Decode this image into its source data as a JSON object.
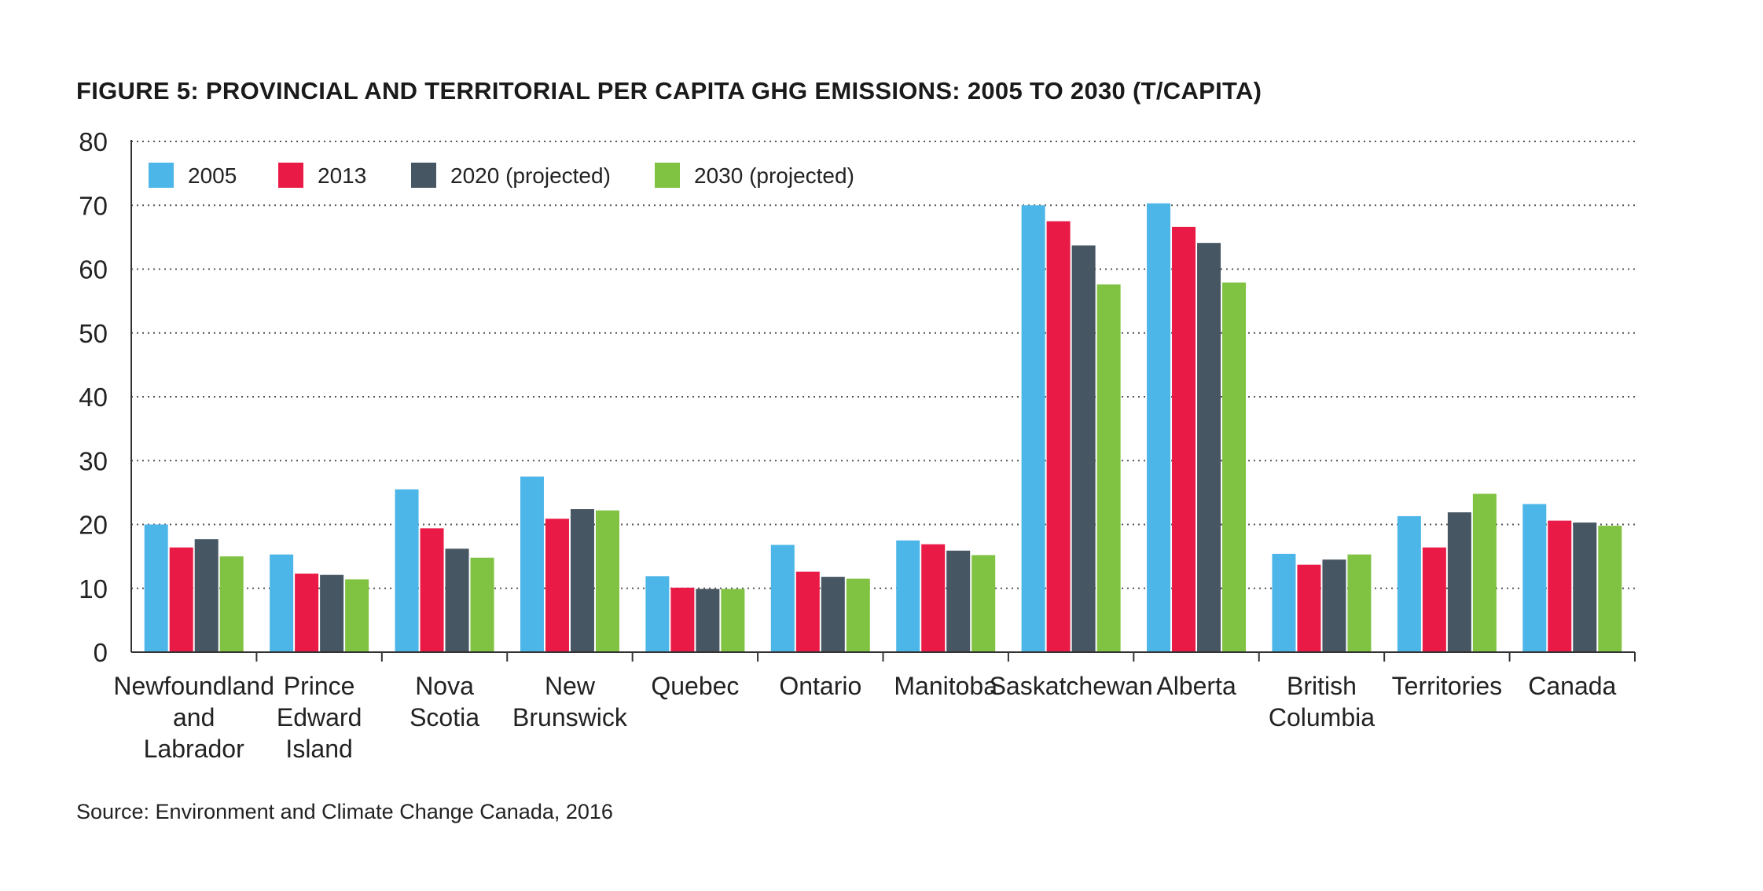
{
  "title": "FIGURE 5: PROVINCIAL AND TERRITORIAL PER CAPITA GHG EMISSIONS: 2005 TO 2030 (T/CAPITA)",
  "source": "Source: Environment and Climate Change Canada, 2016",
  "chart_data": {
    "type": "bar",
    "title": "FIGURE 5: PROVINCIAL AND TERRITORIAL PER CAPITA GHG EMISSIONS: 2005 TO 2030 (T/CAPITA)",
    "xlabel": "",
    "ylabel": "",
    "ylim": [
      0,
      80
    ],
    "yticks": [
      0,
      10,
      20,
      30,
      40,
      50,
      60,
      70,
      80
    ],
    "grid": "horizontal dotted",
    "legend_position": "top-left",
    "categories": [
      [
        "Newfoundland",
        "and",
        "Labrador"
      ],
      [
        "Prince",
        "Edward",
        "Island"
      ],
      [
        "Nova",
        "Scotia"
      ],
      [
        "New",
        "Brunswick"
      ],
      [
        "Quebec"
      ],
      [
        "Ontario"
      ],
      [
        "Manitoba"
      ],
      [
        "Saskatchewan"
      ],
      [
        "Alberta"
      ],
      [
        "British",
        "Columbia"
      ],
      [
        "Territories"
      ],
      [
        "Canada"
      ]
    ],
    "series": [
      {
        "name": "2005",
        "color": "#4db6e8",
        "values": [
          20,
          15.3,
          25.5,
          27.5,
          11.9,
          16.8,
          17.5,
          70,
          70.3,
          15.4,
          21.3,
          23.2
        ]
      },
      {
        "name": "2013",
        "color": "#ea1a47",
        "values": [
          16.4,
          12.3,
          19.4,
          20.9,
          10.1,
          12.6,
          16.9,
          67.5,
          66.6,
          13.7,
          16.4,
          20.6
        ]
      },
      {
        "name": "2020 (projected)",
        "color": "#465663",
        "values": [
          17.7,
          12.1,
          16.2,
          22.4,
          9.9,
          11.8,
          15.9,
          63.7,
          64.1,
          14.5,
          21.9,
          20.3
        ]
      },
      {
        "name": "2030 (projected)",
        "color": "#80c241",
        "values": [
          15,
          11.4,
          14.8,
          22.2,
          9.9,
          11.5,
          15.2,
          57.6,
          57.9,
          15.3,
          24.8,
          19.8
        ]
      }
    ]
  }
}
